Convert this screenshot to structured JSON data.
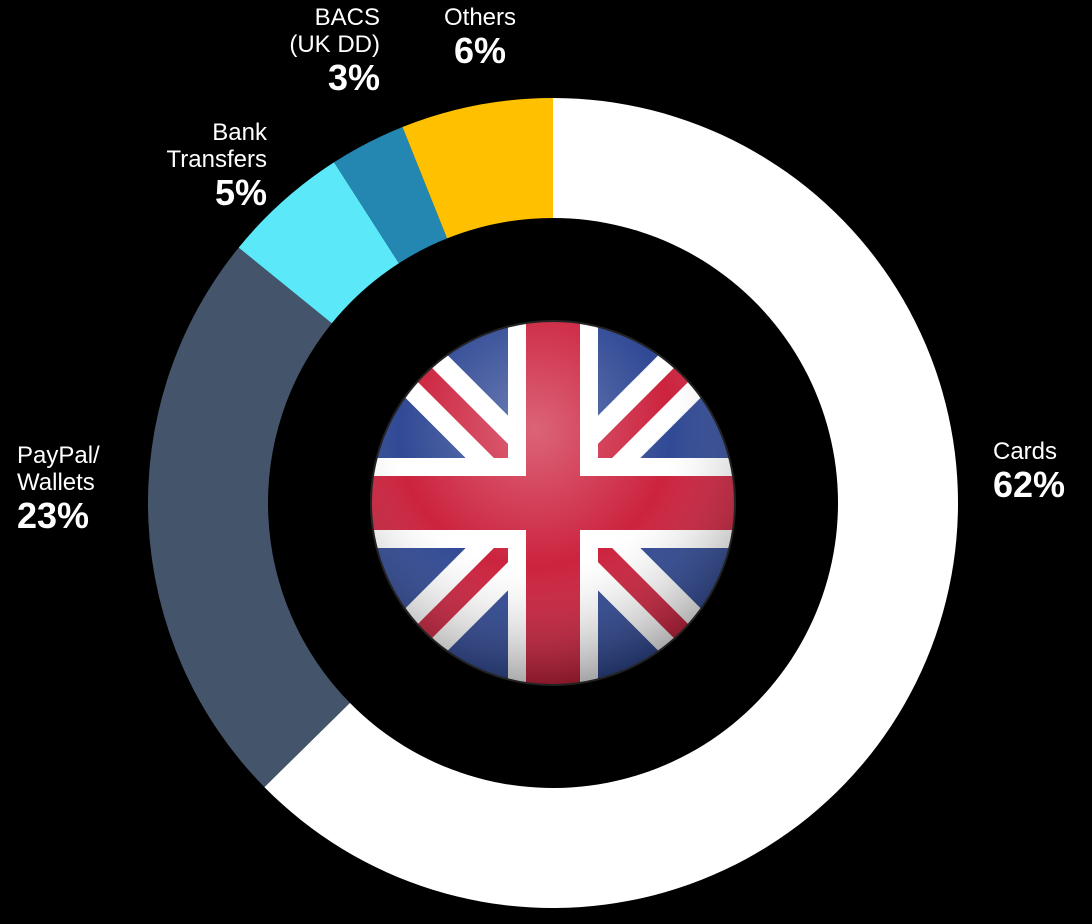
{
  "chart_data": {
    "type": "pie",
    "style": "donut",
    "slices": [
      {
        "label": "Cards",
        "value": 62,
        "display": "62%",
        "color": "#FFFFFF"
      },
      {
        "label": "PayPal/\nWallets",
        "value": 23,
        "display": "23%",
        "color": "#44546A"
      },
      {
        "label": "Bank\nTransfers",
        "value": 5,
        "display": "5%",
        "color": "#5BE8F8"
      },
      {
        "label": "BACS\n(UK DD)",
        "value": 3,
        "display": "3%",
        "color": "#2387B2"
      },
      {
        "label": "Others",
        "value": 6,
        "display": "6%",
        "color": "#FFC000"
      }
    ],
    "center_image": "uk-flag-icon"
  }
}
